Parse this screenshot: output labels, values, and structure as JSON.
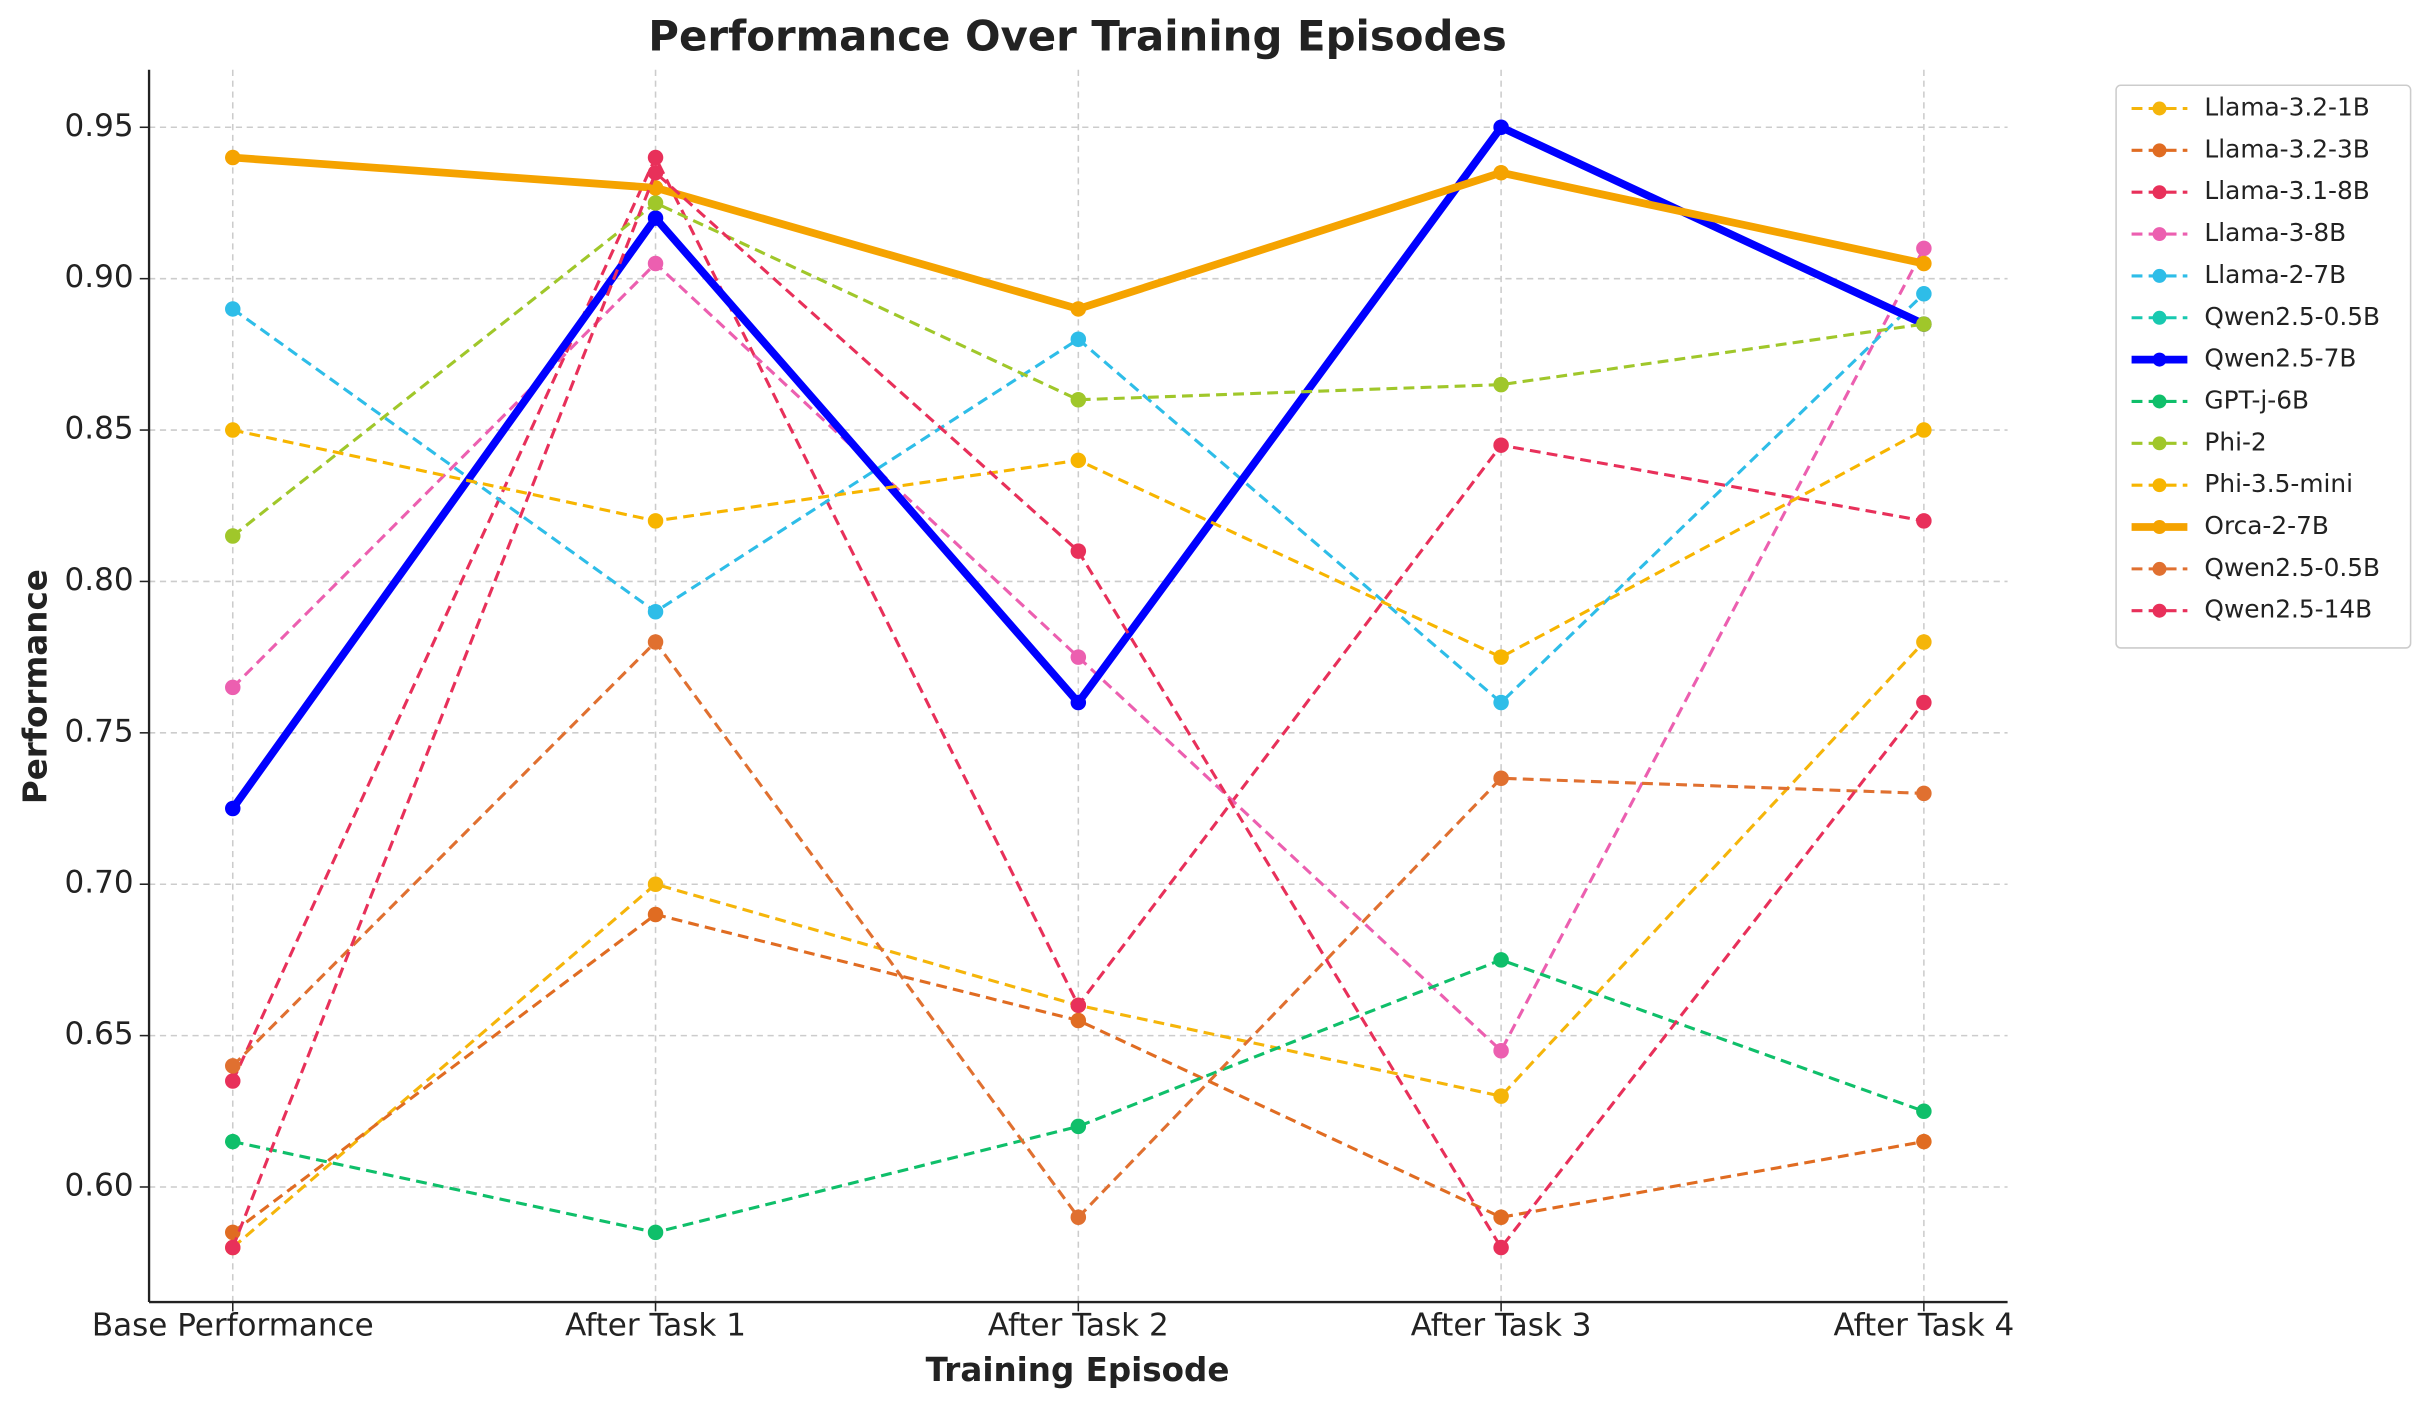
{
  "chart_data": {
    "type": "line",
    "title": "Performance Over Training Episodes",
    "x_label": "Training Episode",
    "y_label": "Performance",
    "categories": [
      "Base Performance",
      "After Task 1",
      "After Task 2",
      "After Task 3",
      "After Task 4"
    ],
    "ylim": [
      0.562,
      0.969
    ],
    "yticks": [
      {
        "value": 0.6,
        "label": "0.60"
      },
      0.65,
      {
        "value": 0.7,
        "label": "0.70"
      },
      0.75,
      {
        "value": 0.8,
        "label": "0.80"
      },
      0.85,
      {
        "value": 0.9,
        "label": "0.90"
      },
      0.95
    ],
    "grid": true,
    "legend": "outside-right",
    "series": [
      {
        "name": "Llama-3.2-1B",
        "color": "#f5b50a",
        "linestyle": "dashed",
        "linewidth": 2,
        "values": [
          0.58,
          0.7,
          0.66,
          0.63,
          0.78
        ]
      },
      {
        "name": "Llama-3.2-3B",
        "color": "#e06c22",
        "linestyle": "dashed",
        "linewidth": 2,
        "values": [
          0.585,
          0.69,
          0.655,
          0.59,
          0.615
        ]
      },
      {
        "name": "Llama-3.1-8B",
        "color": "#e8305a",
        "linestyle": "dashed",
        "linewidth": 2,
        "values": [
          0.635,
          0.94,
          0.66,
          0.845,
          0.82
        ]
      },
      {
        "name": "Llama-3-8B",
        "color": "#ec5fb0",
        "linestyle": "dashed",
        "linewidth": 2,
        "values": [
          0.765,
          0.905,
          0.775,
          0.645,
          0.91
        ]
      },
      {
        "name": "Llama-2-7B",
        "color": "#2ebde8",
        "linestyle": "dashed",
        "linewidth": 2,
        "values": [
          0.89,
          0.79,
          0.88,
          0.76,
          0.895
        ]
      },
      {
        "name": "Qwen2.5-0.5B",
        "color": "#18c9b0",
        "linestyle": "dashed",
        "linewidth": 2,
        "values": [
          null,
          null,
          null,
          null,
          null
        ]
      },
      {
        "name": "Qwen2.5-7B",
        "color": "#0000ff",
        "linestyle": "solid",
        "linewidth": 5,
        "values": [
          0.725,
          0.92,
          0.76,
          0.95,
          0.885
        ]
      },
      {
        "name": "GPT-j-6B",
        "color": "#0fbf6a",
        "linestyle": "dashed",
        "linewidth": 2,
        "values": [
          0.615,
          0.585,
          0.62,
          0.675,
          0.625
        ]
      },
      {
        "name": "Phi-2",
        "color": "#a0c72a",
        "linestyle": "dashed",
        "linewidth": 2,
        "values": [
          0.815,
          0.925,
          0.86,
          0.865,
          0.885
        ]
      },
      {
        "name": "Phi-3.5-mini",
        "color": "#f7b500",
        "linestyle": "dashed",
        "linewidth": 2,
        "values": [
          0.85,
          0.82,
          0.84,
          0.775,
          0.85
        ]
      },
      {
        "name": "Orca-2-7B",
        "color": "#f5a300",
        "linestyle": "solid",
        "linewidth": 5,
        "values": [
          0.94,
          0.93,
          0.89,
          0.935,
          0.905
        ]
      },
      {
        "name": "Qwen2.5-0.5B",
        "color": "#e07030",
        "linestyle": "dashed",
        "linewidth": 2,
        "values": [
          0.64,
          0.78,
          0.59,
          0.735,
          0.73
        ]
      },
      {
        "name": "Qwen2.5-14B",
        "color": "#e8305a",
        "linestyle": "dashed",
        "linewidth": 2,
        "values": [
          0.58,
          0.935,
          0.81,
          0.58,
          0.76
        ]
      }
    ]
  }
}
